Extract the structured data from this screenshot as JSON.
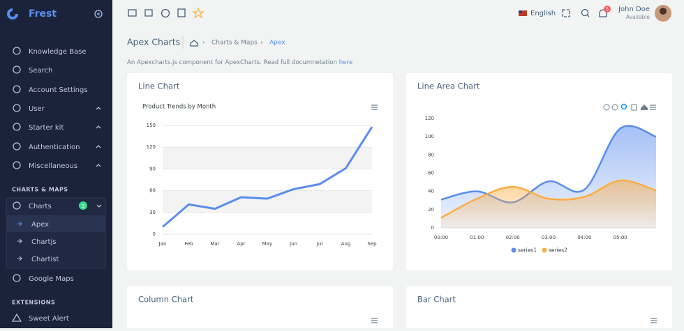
{
  "sidebar": {
    "brand": "Frest",
    "items": [
      "Knowledge Base",
      "Search",
      "Account Settings",
      "User",
      "Starter kit",
      "Authentication",
      "Miscellaneous"
    ],
    "section1": "CHARTS & MAPS",
    "charts": "Charts",
    "charts_badge": "3",
    "subitems": [
      "Apex",
      "Chartjs",
      "Chartist"
    ],
    "maps": "Google Maps",
    "section2": "EXTENSIONS",
    "sweet": "Sweet Alert"
  },
  "topbar": {
    "language": "English",
    "notifications": "5",
    "user": "John Doe",
    "status": "Available"
  },
  "page": {
    "title": "Apex Charts",
    "breadcrumb": [
      "Charts & Maps",
      "Apex"
    ],
    "description": "An Apexcharts.js component for ApexCharts. Read full documnetation",
    "link": "here"
  },
  "cards": [
    "Line Chart",
    "Line Area Chart",
    "Column Chart",
    "Bar Chart"
  ],
  "chart_data": [
    {
      "type": "line",
      "title": "Product Trends by Month",
      "categories": [
        "Jan",
        "Feb",
        "Mar",
        "Apr",
        "May",
        "Jun",
        "Jul",
        "Aug",
        "Sep"
      ],
      "values": [
        10,
        41,
        35,
        51,
        49,
        62,
        69,
        91,
        148
      ],
      "color": "#5a8dee",
      "ylim": [
        0,
        150
      ],
      "yticks": [
        0,
        30,
        60,
        90,
        120,
        150
      ],
      "grid": true
    },
    {
      "type": "area",
      "categories": [
        "00:00",
        "01:00",
        "02:00",
        "03:00",
        "04:00",
        "05:00",
        null
      ],
      "series": [
        {
          "name": "series1",
          "color": "#5a8dee",
          "values": [
            31,
            40,
            28,
            51,
            42,
            109,
            100
          ]
        },
        {
          "name": "series2",
          "color": "#fdac41",
          "values": [
            11,
            32,
            45,
            32,
            34,
            52,
            41
          ]
        }
      ],
      "ylim": [
        0,
        120
      ],
      "yticks": [
        0,
        20,
        40,
        60,
        80,
        100,
        120
      ],
      "legend": "bottom"
    }
  ]
}
